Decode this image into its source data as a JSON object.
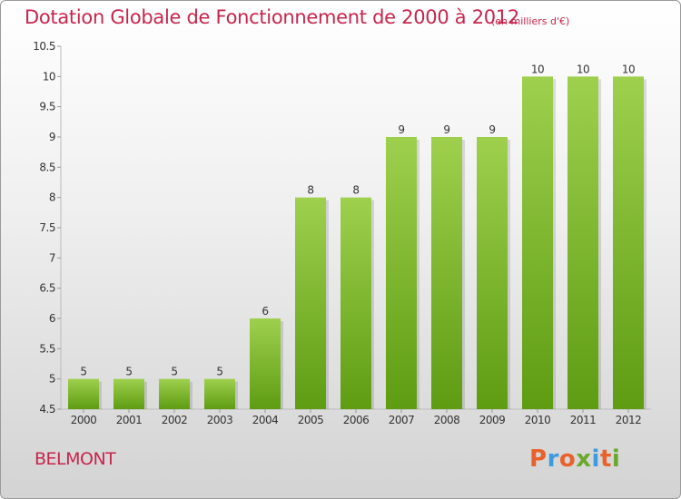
{
  "header": {
    "title": "Dotation Globale de Fonctionnement de 2000 à 2012",
    "unit": "(en milliers d'€)"
  },
  "footer": {
    "commune": "BELMONT",
    "logo_text": "Proxiti"
  },
  "colors": {
    "title": "#c8254b",
    "bar_top": "#9ed04e",
    "bar_bottom": "#5e9c12",
    "logo_letters": [
      "#e8622c",
      "#3d9be0",
      "#e8622c",
      "#6aa82e",
      "#3d9be0",
      "#e8622c",
      "#6aa82e"
    ]
  },
  "chart_data": {
    "type": "bar",
    "categories": [
      "2000",
      "2001",
      "2002",
      "2003",
      "2004",
      "2005",
      "2006",
      "2007",
      "2008",
      "2009",
      "2010",
      "2011",
      "2012"
    ],
    "values": [
      5,
      5,
      5,
      5,
      6,
      8,
      8,
      9,
      9,
      9,
      10,
      10,
      10
    ],
    "ylim": [
      4.5,
      10.5
    ],
    "yticks": [
      "4.5",
      "5",
      "5.5",
      "6",
      "6.5",
      "7",
      "7.5",
      "8",
      "8.5",
      "9",
      "9.5",
      "10",
      "10.5"
    ],
    "data_labels": true,
    "grid": false
  }
}
